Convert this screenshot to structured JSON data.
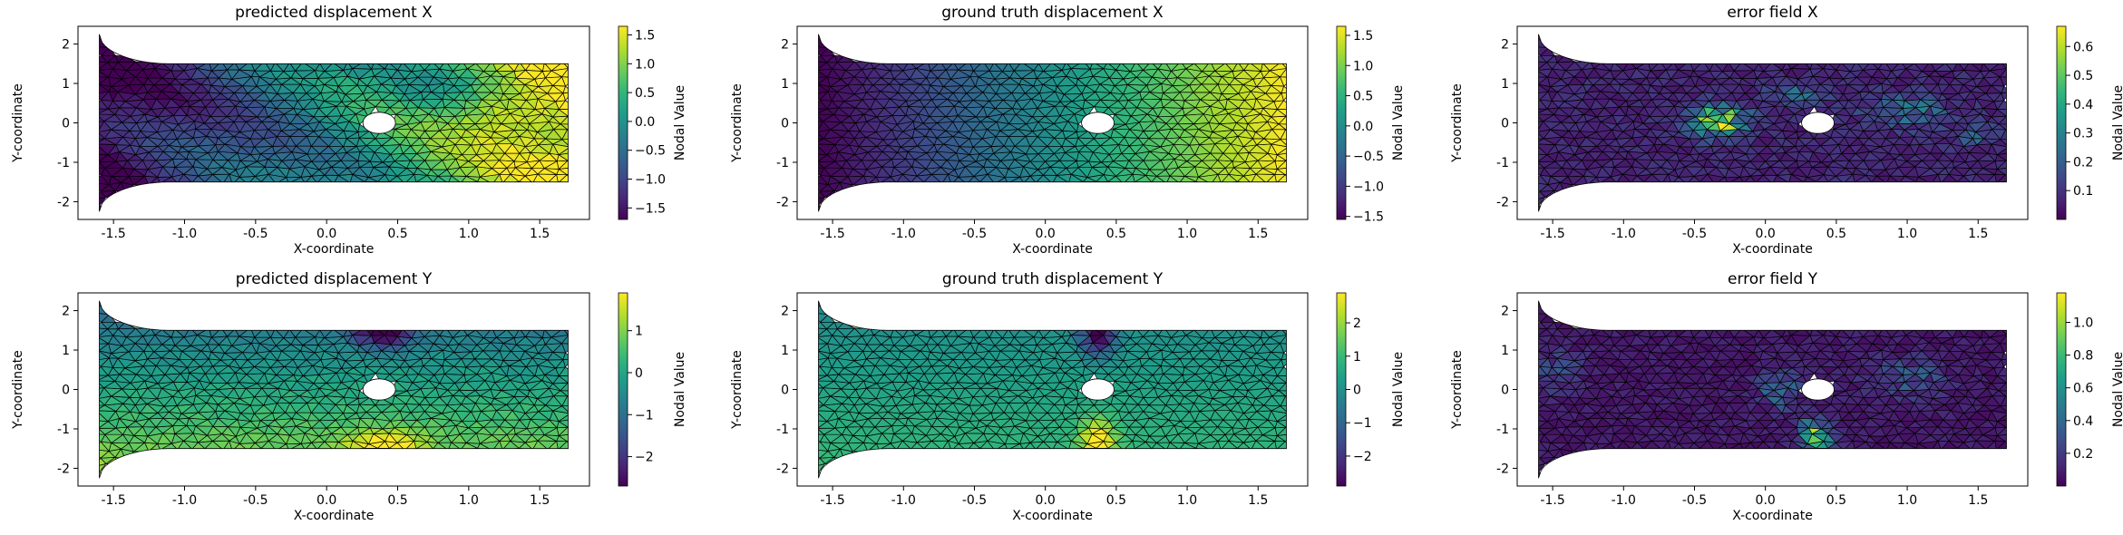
{
  "colormap": [
    "#440154",
    "#482878",
    "#3e4a89",
    "#31688e",
    "#26828e",
    "#1f9e89",
    "#35b779",
    "#6ece58",
    "#b5de2b",
    "#fde725"
  ],
  "mesh_color": "#000000",
  "chart_data": [
    {
      "type": "heatmap",
      "title": "predicted displacement X",
      "xlabel": "X-coordinate",
      "ylabel": "Y-coordinate",
      "xlim": [
        -1.75,
        1.85
      ],
      "ylim": [
        -2.45,
        2.45
      ],
      "xticks": [
        "-1.5",
        "-1.0",
        "-0.5",
        "0.0",
        "0.5",
        "1.0",
        "1.5"
      ],
      "yticks": [
        "-2",
        "-1",
        "0",
        "1",
        "2"
      ],
      "colorbar": {
        "label": "Nodal Value",
        "min": -1.7,
        "max": 1.65,
        "ticks": [
          "-1.5",
          "-1.0",
          "-0.5",
          "0.0",
          "0.5",
          "1.0",
          "1.5"
        ]
      },
      "field": "pred_x"
    },
    {
      "type": "heatmap",
      "title": "ground truth displacement X",
      "xlabel": "X-coordinate",
      "ylabel": "Y-coordinate",
      "xlim": [
        -1.75,
        1.85
      ],
      "ylim": [
        -2.45,
        2.45
      ],
      "xticks": [
        "-1.5",
        "-1.0",
        "-0.5",
        "0.0",
        "0.5",
        "1.0",
        "1.5"
      ],
      "yticks": [
        "-2",
        "-1",
        "0",
        "1",
        "2"
      ],
      "colorbar": {
        "label": "Nodal Value",
        "min": -1.55,
        "max": 1.65,
        "ticks": [
          "-1.5",
          "-1.0",
          "-0.5",
          "0.0",
          "0.5",
          "1.0",
          "1.5"
        ]
      },
      "field": "gt_x"
    },
    {
      "type": "heatmap",
      "title": "error field X",
      "xlabel": "X-coordinate",
      "ylabel": "Y-coordinate",
      "xlim": [
        -1.75,
        1.85
      ],
      "ylim": [
        -2.45,
        2.45
      ],
      "xticks": [
        "-1.5",
        "-1.0",
        "-0.5",
        "0.0",
        "0.5",
        "1.0",
        "1.5"
      ],
      "yticks": [
        "-2",
        "-1",
        "0",
        "1",
        "2"
      ],
      "colorbar": {
        "label": "Nodal Value",
        "min": 0.0,
        "max": 0.67,
        "ticks": [
          "0.1",
          "0.2",
          "0.3",
          "0.4",
          "0.5",
          "0.6"
        ]
      },
      "field": "err_x"
    },
    {
      "type": "heatmap",
      "title": "predicted displacement Y",
      "xlabel": "X-coordinate",
      "ylabel": "Y-coordinate",
      "xlim": [
        -1.75,
        1.85
      ],
      "ylim": [
        -2.45,
        2.45
      ],
      "xticks": [
        "-1.5",
        "-1.0",
        "-0.5",
        "0.0",
        "0.5",
        "1.0",
        "1.5"
      ],
      "yticks": [
        "-2",
        "-1",
        "0",
        "1",
        "2"
      ],
      "colorbar": {
        "label": "Nodal Value",
        "min": -2.7,
        "max": 1.9,
        "ticks": [
          "-2",
          "-1",
          "0",
          "1"
        ]
      },
      "field": "pred_y"
    },
    {
      "type": "heatmap",
      "title": "ground truth displacement Y",
      "xlabel": "X-coordinate",
      "ylabel": "Y-coordinate",
      "xlim": [
        -1.75,
        1.85
      ],
      "ylim": [
        -2.45,
        2.45
      ],
      "xticks": [
        "-1.5",
        "-1.0",
        "-0.5",
        "0.0",
        "0.5",
        "1.0",
        "1.5"
      ],
      "yticks": [
        "-2",
        "-1",
        "0",
        "1",
        "2"
      ],
      "colorbar": {
        "label": "Nodal Value",
        "min": -2.9,
        "max": 2.9,
        "ticks": [
          "-2",
          "-1",
          "0",
          "1",
          "2"
        ]
      },
      "field": "gt_y"
    },
    {
      "type": "heatmap",
      "title": "error field Y",
      "xlabel": "X-coordinate",
      "ylabel": "Y-coordinate",
      "xlim": [
        -1.75,
        1.85
      ],
      "ylim": [
        -2.45,
        2.45
      ],
      "xticks": [
        "-1.5",
        "-1.0",
        "-0.5",
        "0.0",
        "0.5",
        "1.0",
        "1.5"
      ],
      "yticks": [
        "-2",
        "-1",
        "0",
        "1",
        "2"
      ],
      "colorbar": {
        "label": "Nodal Value",
        "min": 0.0,
        "max": 1.18,
        "ticks": [
          "0.2",
          "0.4",
          "0.6",
          "0.8",
          "1.0"
        ]
      },
      "field": "err_y"
    }
  ]
}
